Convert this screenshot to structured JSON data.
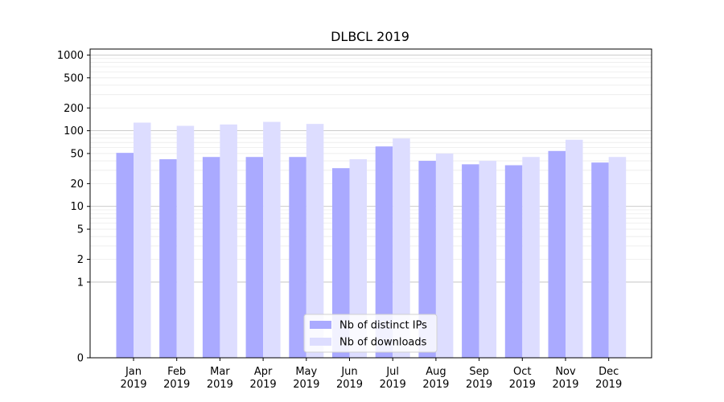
{
  "chart_data": {
    "type": "bar",
    "title": "DLBCL 2019",
    "xlabel": "",
    "ylabel": "",
    "yscale": "symlog",
    "ylim": [
      0,
      1200
    ],
    "yticks": [
      0,
      1,
      2,
      5,
      10,
      20,
      50,
      100,
      200,
      500,
      1000
    ],
    "ytick_labels": [
      "0",
      "1",
      "2",
      "5",
      "10",
      "20",
      "50",
      "100",
      "200",
      "500",
      "1000"
    ],
    "grid": true,
    "legend_position": "bottom-center",
    "categories": [
      "Jan\n2019",
      "Feb\n2019",
      "Mar\n2019",
      "Apr\n2019",
      "May\n2019",
      "Jun\n2019",
      "Jul\n2019",
      "Aug\n2019",
      "Sep\n2019",
      "Oct\n2019",
      "Nov\n2019",
      "Dec\n2019"
    ],
    "category_lines": [
      [
        "Jan",
        "2019"
      ],
      [
        "Feb",
        "2019"
      ],
      [
        "Mar",
        "2019"
      ],
      [
        "Apr",
        "2019"
      ],
      [
        "May",
        "2019"
      ],
      [
        "Jun",
        "2019"
      ],
      [
        "Jul",
        "2019"
      ],
      [
        "Aug",
        "2019"
      ],
      [
        "Sep",
        "2019"
      ],
      [
        "Oct",
        "2019"
      ],
      [
        "Nov",
        "2019"
      ],
      [
        "Dec",
        "2019"
      ]
    ],
    "series": [
      {
        "name": "Nb of distinct IPs",
        "color": "#aaaaff",
        "values": [
          51,
          42,
          45,
          45,
          45,
          32,
          62,
          40,
          36,
          35,
          54,
          38
        ]
      },
      {
        "name": "Nb of downloads",
        "color": "#ddddff",
        "values": [
          128,
          116,
          121,
          131,
          123,
          42,
          79,
          50,
          40,
          45,
          76,
          45
        ]
      }
    ]
  }
}
